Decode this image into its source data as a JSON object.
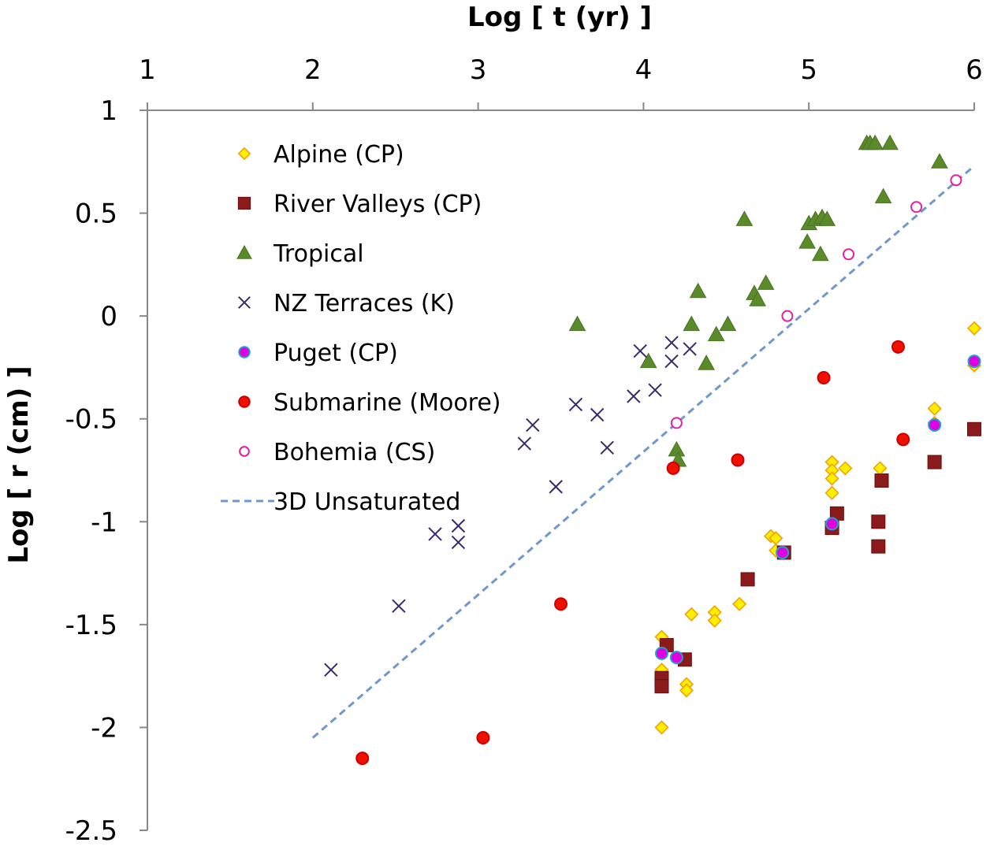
{
  "chart_data": {
    "type": "scatter",
    "title": "",
    "xlabel": "Log [ t (yr) ]",
    "ylabel": "Log [ r (cm) ]",
    "xlim": [
      1,
      6
    ],
    "ylim": [
      -2.5,
      1
    ],
    "x_ticks": [
      1,
      2,
      3,
      4,
      5,
      6
    ],
    "x_tick_labels": [
      "1",
      "2",
      "3",
      "4",
      "5",
      "6"
    ],
    "y_ticks": [
      1,
      0.5,
      0,
      -0.5,
      -1,
      -1.5,
      -2,
      -2.5
    ],
    "y_tick_labels": [
      "1",
      "0.5",
      "0",
      "-0.5",
      "-1",
      "-1.5",
      "-2",
      "-2.5"
    ],
    "x_axis_position": "top",
    "grid": false,
    "legend_position": "top-left",
    "series": [
      {
        "name": "Alpine (CP)",
        "marker": "diamond",
        "fill": "#ffee00",
        "stroke": "#f0a000",
        "points": [
          [
            4.11,
            -1.56
          ],
          [
            4.11,
            -1.72
          ],
          [
            4.11,
            -2.0
          ],
          [
            4.26,
            -1.79
          ],
          [
            4.26,
            -1.82
          ],
          [
            4.29,
            -1.45
          ],
          [
            4.43,
            -1.44
          ],
          [
            4.43,
            -1.48
          ],
          [
            4.58,
            -1.4
          ],
          [
            4.77,
            -1.07
          ],
          [
            4.8,
            -1.08
          ],
          [
            4.8,
            -1.14
          ],
          [
            5.14,
            -0.71
          ],
          [
            5.14,
            -0.75
          ],
          [
            5.14,
            -0.79
          ],
          [
            5.14,
            -0.86
          ],
          [
            5.22,
            -0.74
          ],
          [
            5.43,
            -0.74
          ],
          [
            5.76,
            -0.45
          ],
          [
            5.76,
            -0.52
          ],
          [
            6.0,
            -0.06
          ],
          [
            6.0,
            -0.24
          ]
        ]
      },
      {
        "name": "River Valleys (CP)",
        "marker": "square",
        "fill": "#8b1a1a",
        "stroke": "#6a1010",
        "points": [
          [
            4.11,
            -1.76
          ],
          [
            4.11,
            -1.8
          ],
          [
            4.14,
            -1.6
          ],
          [
            4.25,
            -1.67
          ],
          [
            4.63,
            -1.28
          ],
          [
            4.85,
            -1.15
          ],
          [
            5.14,
            -1.03
          ],
          [
            5.17,
            -0.96
          ],
          [
            5.42,
            -1.0
          ],
          [
            5.42,
            -1.12
          ],
          [
            5.44,
            -0.8
          ],
          [
            5.76,
            -0.71
          ],
          [
            6.0,
            -0.55
          ]
        ]
      },
      {
        "name": "Tropical",
        "marker": "triangle",
        "fill": "#5a8a2a",
        "stroke": "#4a7420",
        "points": [
          [
            3.6,
            -0.04
          ],
          [
            4.03,
            -0.22
          ],
          [
            4.2,
            -0.65
          ],
          [
            4.21,
            -0.7
          ],
          [
            4.29,
            -0.04
          ],
          [
            4.33,
            0.12
          ],
          [
            4.38,
            -0.23
          ],
          [
            4.44,
            -0.09
          ],
          [
            4.51,
            -0.04
          ],
          [
            4.61,
            0.47
          ],
          [
            4.67,
            0.11
          ],
          [
            4.69,
            0.08
          ],
          [
            4.74,
            0.16
          ],
          [
            4.99,
            0.36
          ],
          [
            5.0,
            0.45
          ],
          [
            5.04,
            0.47
          ],
          [
            5.07,
            0.3
          ],
          [
            5.08,
            0.48
          ],
          [
            5.11,
            0.47
          ],
          [
            5.35,
            0.84
          ],
          [
            5.37,
            0.84
          ],
          [
            5.4,
            0.84
          ],
          [
            5.45,
            0.58
          ],
          [
            5.49,
            0.84
          ],
          [
            5.79,
            0.75
          ]
        ]
      },
      {
        "name": "NZ Terraces (K)",
        "marker": "x",
        "fill": "none",
        "stroke": "#3a2a6a",
        "points": [
          [
            2.11,
            -1.72
          ],
          [
            2.52,
            -1.41
          ],
          [
            2.74,
            -1.06
          ],
          [
            2.88,
            -1.02
          ],
          [
            2.88,
            -1.1
          ],
          [
            3.28,
            -0.62
          ],
          [
            3.33,
            -0.53
          ],
          [
            3.47,
            -0.83
          ],
          [
            3.59,
            -0.43
          ],
          [
            3.72,
            -0.48
          ],
          [
            3.78,
            -0.64
          ],
          [
            3.94,
            -0.39
          ],
          [
            3.98,
            -0.17
          ],
          [
            4.07,
            -0.36
          ],
          [
            4.17,
            -0.13
          ],
          [
            4.17,
            -0.22
          ],
          [
            4.28,
            -0.16
          ]
        ]
      },
      {
        "name": "Puget (CP)",
        "marker": "circle",
        "fill": "#e000e0",
        "stroke": "#20a0d0",
        "points": [
          [
            4.11,
            -1.64
          ],
          [
            4.2,
            -1.66
          ],
          [
            4.84,
            -1.15
          ],
          [
            5.14,
            -1.01
          ],
          [
            5.76,
            -0.53
          ],
          [
            6.0,
            -0.22
          ]
        ]
      },
      {
        "name": "Submarine (Moore)",
        "marker": "circle",
        "fill": "#ee1100",
        "stroke": "#cc0000",
        "points": [
          [
            2.3,
            -2.15
          ],
          [
            3.03,
            -2.05
          ],
          [
            3.5,
            -1.4
          ],
          [
            4.18,
            -0.74
          ],
          [
            4.57,
            -0.7
          ],
          [
            5.09,
            -0.3
          ],
          [
            5.54,
            -0.15
          ],
          [
            5.57,
            -0.6
          ]
        ]
      },
      {
        "name": "Bohemia (CS)",
        "marker": "circle-open",
        "fill": "#ffffff",
        "stroke": "#e020a0",
        "points": [
          [
            4.2,
            -0.52
          ],
          [
            4.87,
            0.0
          ],
          [
            5.24,
            0.3
          ],
          [
            5.65,
            0.53
          ],
          [
            5.89,
            0.66
          ]
        ]
      }
    ],
    "lines": [
      {
        "name": "3D Unsaturated",
        "style": "dashed",
        "color": "#6f98cc",
        "points": [
          [
            2.0,
            -2.05
          ],
          [
            6.0,
            0.73
          ]
        ]
      }
    ]
  }
}
